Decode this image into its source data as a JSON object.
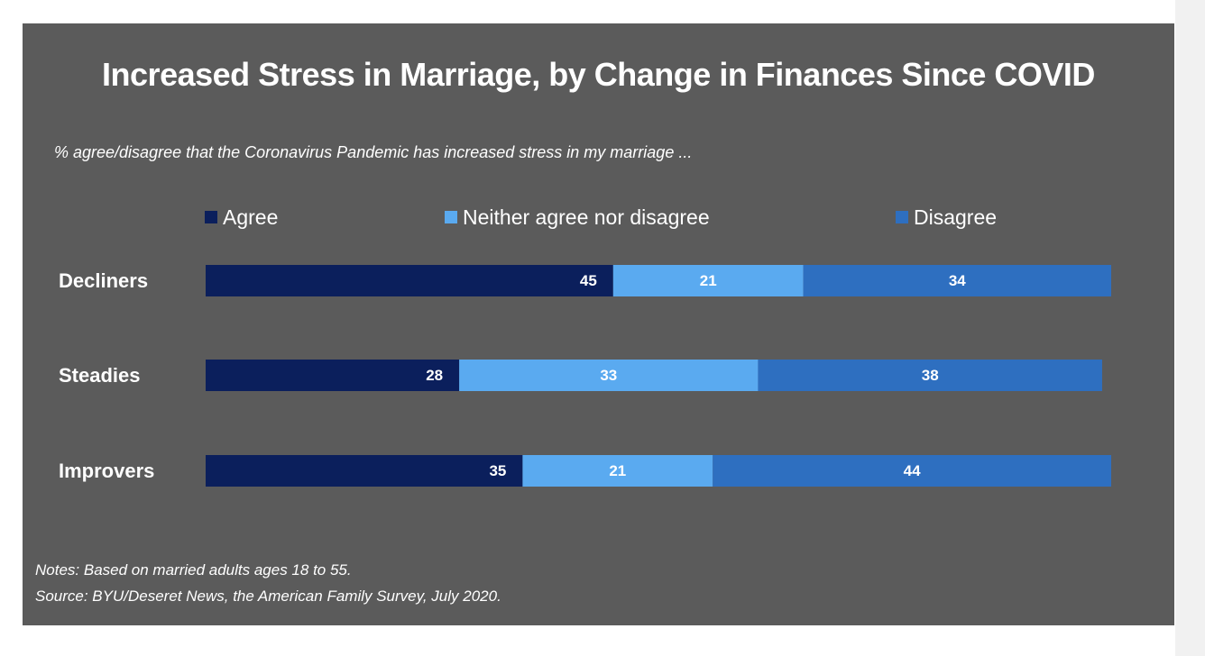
{
  "chart_data": {
    "type": "bar",
    "orientation": "horizontal",
    "stacked": true,
    "title": "Increased Stress in Marriage, by Change in Finances Since COVID",
    "subtitle": "% agree/disagree that the Coronavirus  Pandemic has increased stress in my marriage ...",
    "categories": [
      "Decliners",
      "Steadies",
      "Improvers"
    ],
    "series": [
      {
        "name": "Agree",
        "color": "#0b1f5c",
        "values": [
          45,
          28,
          35
        ]
      },
      {
        "name": "Neither agree nor disagree",
        "color": "#5aaaf0",
        "values": [
          21,
          33,
          21
        ]
      },
      {
        "name": "Disagree",
        "color": "#2e6fc0",
        "values": [
          34,
          38,
          44
        ]
      }
    ],
    "xlim": [
      0,
      100
    ],
    "grid": false,
    "legend_position": "top",
    "notes": "Notes: Based on married adults ages 18 to 55.",
    "source": "Source: BYU/Deseret News, the American Family Survey, July 2020."
  }
}
